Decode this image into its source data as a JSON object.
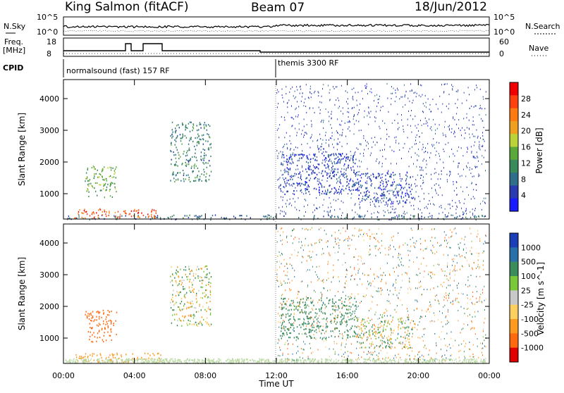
{
  "header": {
    "site": "King Salmon (fitACF)",
    "beam": "Beam 07",
    "date": "18/Jun/2012"
  },
  "top_panels": {
    "nsky_label": "N.Sky",
    "nsearch_label": "N.Search",
    "freq_label_line1": "Freq.",
    "freq_label_line2": "[MHz]",
    "nave_label": "Nave",
    "cpid_label": "CPID",
    "n_ticks_left": [
      "10^5",
      "10^0"
    ],
    "n_ticks_right": [
      "10^5",
      "10^0"
    ],
    "freq_ticks": [
      "18",
      "8"
    ],
    "nave_ticks": [
      "60",
      "0"
    ]
  },
  "cpid": {
    "mode1": "normalsound (fast) 157 RF",
    "mode2": "themis 3300 RF"
  },
  "chart_data": [
    {
      "type": "heatmap",
      "name": "power",
      "ylabel": "Slant Range [km]",
      "ylim": [
        200,
        4600
      ],
      "y_ticks": [
        1000,
        2000,
        3000,
        4000
      ],
      "xlim": [
        0,
        24
      ],
      "colorbar": {
        "label": "Power [dB]",
        "range": [
          0,
          32
        ],
        "ticks": [
          "28",
          "24",
          "20",
          "16",
          "12",
          "8",
          "4"
        ],
        "colors": [
          "#1a1aff",
          "#2a3ab0",
          "#2f6f8a",
          "#3a8a5a",
          "#5aa83a",
          "#bcd23a",
          "#f0a020",
          "#ff7a10",
          "#ff4010",
          "#f00000"
        ]
      },
      "features": [
        {
          "time": [
            0.1,
            23.8
          ],
          "range": [
            200,
            350
          ],
          "level": 8,
          "desc": "ground scatter band"
        },
        {
          "time": [
            0.6,
            5.5
          ],
          "range": [
            250,
            550
          ],
          "level": 26
        },
        {
          "time": [
            1.2,
            3.0
          ],
          "range": [
            900,
            1900
          ],
          "level": 14
        },
        {
          "time": [
            6.0,
            8.3
          ],
          "range": [
            1400,
            3300
          ],
          "level": 10
        },
        {
          "time": [
            12.2,
            16.5
          ],
          "range": [
            1000,
            2300
          ],
          "level": 5
        },
        {
          "time": [
            16.5,
            19.7
          ],
          "range": [
            700,
            1700
          ],
          "level": 5
        }
      ]
    },
    {
      "type": "heatmap",
      "name": "velocity",
      "ylabel": "Slant Range [km]",
      "ylim": [
        200,
        4600
      ],
      "y_ticks": [
        1000,
        2000,
        3000,
        4000
      ],
      "xlim": [
        0,
        24
      ],
      "xlabel": "Time UT",
      "x_ticks": [
        "00:00",
        "04:00",
        "08:00",
        "12:00",
        "16:00",
        "20:00",
        "00:00"
      ],
      "colorbar": {
        "label": "Velocity [m s^-1]",
        "ticks": [
          "1000",
          "500",
          "100",
          "25",
          "-25",
          "-100",
          "-500",
          "-1000"
        ],
        "colors": [
          "#1c3fb8",
          "#2a70a8",
          "#3a8c5c",
          "#7ac83a",
          "#c8c8c8",
          "#ffd060",
          "#ff9a20",
          "#ff6a10",
          "#e00000"
        ]
      },
      "features": [
        {
          "time": [
            0.6,
            5.5
          ],
          "range": [
            250,
            550
          ],
          "velocity": -300
        },
        {
          "time": [
            1.2,
            3.0
          ],
          "range": [
            900,
            1900
          ],
          "velocity": -700
        },
        {
          "time": [
            6.0,
            8.3
          ],
          "range": [
            1400,
            3300
          ],
          "velocity": 0
        },
        {
          "time": [
            12.2,
            16.5
          ],
          "range": [
            1000,
            2300
          ],
          "velocity": 300
        },
        {
          "time": [
            16.5,
            19.7
          ],
          "range": [
            700,
            1700
          ],
          "velocity": 20
        }
      ]
    }
  ]
}
